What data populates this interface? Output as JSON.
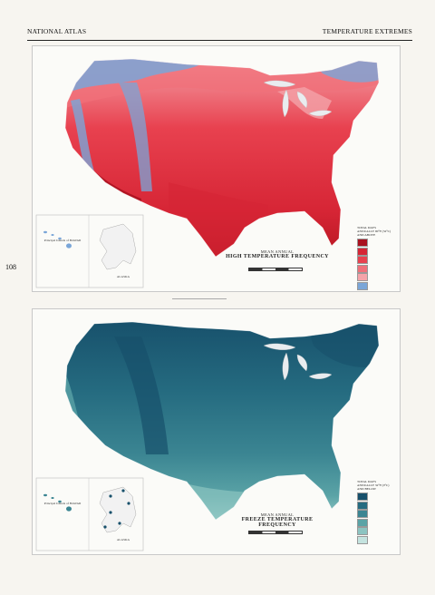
{
  "header": {
    "left": "NATIONAL ATLAS",
    "right": "TEMPERATURE EXTREMES"
  },
  "page_number": "108",
  "map_high": {
    "title_line1": "MEAN ANNUAL",
    "title_line2": "HIGH TEMPERATURE FREQUENCY",
    "legend_title": "TOTAL DAYS ANNUALLY 90°F (32°C) AND ABOVE",
    "inset_hawaii": "Principal Islands of HAWAII",
    "inset_alaska": "ALASKA",
    "colors": [
      "#a9111f",
      "#d62535",
      "#e8414f",
      "#f0707a",
      "#f4a3a9",
      "#7aa6d8"
    ]
  },
  "map_freeze": {
    "title_line1": "MEAN ANNUAL",
    "title_line2": "FREEZE TEMPERATURE FREQUENCY",
    "legend_title": "TOTAL DAYS ANNUALLY 32°F (0°C) AND BELOW",
    "inset_hawaii": "Principal Islands of HAWAII",
    "inset_alaska": "ALASKA",
    "colors": [
      "#17506b",
      "#256b80",
      "#3b8592",
      "#5aa3a6",
      "#8cc4c1",
      "#c4e3df"
    ]
  }
}
